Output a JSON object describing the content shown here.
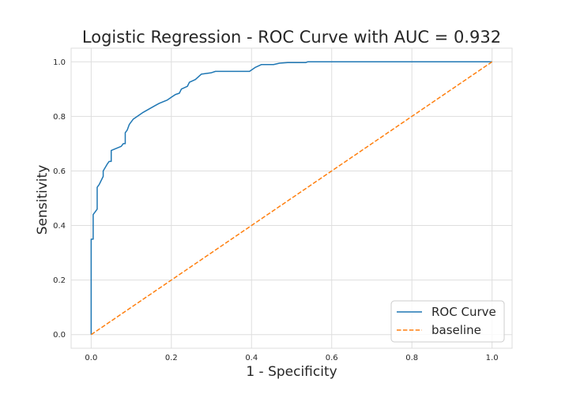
{
  "chart_data": {
    "type": "line",
    "title": "Logistic Regression - ROC Curve with AUC = 0.932",
    "xlabel": "1 - Specificity",
    "ylabel": "Sensitivity",
    "xlim": [
      -0.05,
      1.05
    ],
    "ylim": [
      -0.05,
      1.05
    ],
    "xticks": [
      0.0,
      0.2,
      0.4,
      0.6,
      0.8,
      1.0
    ],
    "yticks": [
      0.0,
      0.2,
      0.4,
      0.6,
      0.8,
      1.0
    ],
    "xtick_labels": [
      "0.0",
      "0.2",
      "0.4",
      "0.6",
      "0.8",
      "1.0"
    ],
    "ytick_labels": [
      "0.0",
      "0.2",
      "0.4",
      "0.6",
      "0.8",
      "1.0"
    ],
    "grid": true,
    "legend_position": "lower-right",
    "series": [
      {
        "name": "ROC Curve",
        "color": "#1f77b4",
        "style": "solid",
        "points": [
          [
            0.0,
            0.0
          ],
          [
            0.0,
            0.35
          ],
          [
            0.005,
            0.35
          ],
          [
            0.005,
            0.36
          ],
          [
            0.005,
            0.44
          ],
          [
            0.01,
            0.45
          ],
          [
            0.015,
            0.46
          ],
          [
            0.015,
            0.54
          ],
          [
            0.02,
            0.55
          ],
          [
            0.03,
            0.58
          ],
          [
            0.03,
            0.6
          ],
          [
            0.04,
            0.625
          ],
          [
            0.045,
            0.635
          ],
          [
            0.05,
            0.635
          ],
          [
            0.05,
            0.675
          ],
          [
            0.075,
            0.69
          ],
          [
            0.08,
            0.7
          ],
          [
            0.085,
            0.7
          ],
          [
            0.085,
            0.74
          ],
          [
            0.09,
            0.75
          ],
          [
            0.095,
            0.77
          ],
          [
            0.105,
            0.79
          ],
          [
            0.13,
            0.815
          ],
          [
            0.16,
            0.84
          ],
          [
            0.17,
            0.848
          ],
          [
            0.19,
            0.86
          ],
          [
            0.2,
            0.87
          ],
          [
            0.21,
            0.88
          ],
          [
            0.22,
            0.885
          ],
          [
            0.225,
            0.9
          ],
          [
            0.24,
            0.91
          ],
          [
            0.245,
            0.925
          ],
          [
            0.26,
            0.935
          ],
          [
            0.275,
            0.955
          ],
          [
            0.3,
            0.96
          ],
          [
            0.31,
            0.965
          ],
          [
            0.32,
            0.965
          ],
          [
            0.395,
            0.965
          ],
          [
            0.41,
            0.98
          ],
          [
            0.425,
            0.99
          ],
          [
            0.455,
            0.99
          ],
          [
            0.47,
            0.995
          ],
          [
            0.49,
            0.997
          ],
          [
            0.535,
            0.997
          ],
          [
            0.54,
            1.0
          ],
          [
            1.0,
            1.0
          ]
        ]
      },
      {
        "name": "baseline",
        "color": "#ff7f0e",
        "style": "dashed",
        "points": [
          [
            0.0,
            0.0
          ],
          [
            1.0,
            1.0
          ]
        ]
      }
    ]
  }
}
